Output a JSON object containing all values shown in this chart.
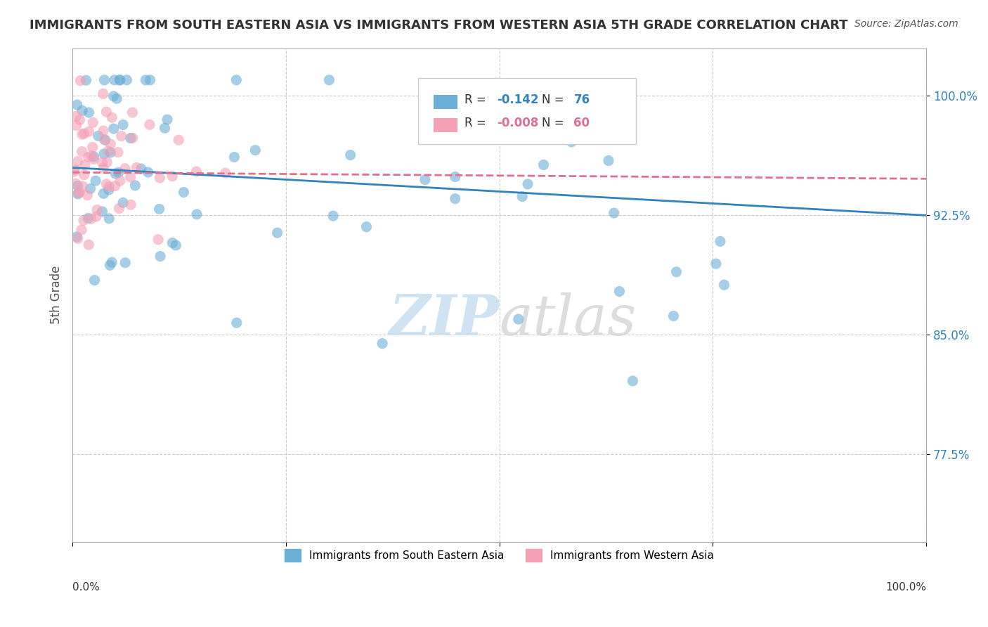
{
  "title": "IMMIGRANTS FROM SOUTH EASTERN ASIA VS IMMIGRANTS FROM WESTERN ASIA 5TH GRADE CORRELATION CHART",
  "source": "Source: ZipAtlas.com",
  "ylabel": "5th Grade",
  "y_tick_labels": [
    "77.5%",
    "85.0%",
    "92.5%",
    "100.0%"
  ],
  "y_tick_values": [
    0.775,
    0.85,
    0.925,
    1.0
  ],
  "xlim": [
    0.0,
    1.0
  ],
  "ylim": [
    0.72,
    1.03
  ],
  "legend_blue_label": "Immigrants from South Eastern Asia",
  "legend_pink_label": "Immigrants from Western Asia",
  "R_blue": -0.142,
  "N_blue": 76,
  "R_pink": -0.008,
  "N_pink": 60,
  "blue_color": "#6baed6",
  "pink_color": "#f4a0b5",
  "blue_line_color": "#3182bd",
  "pink_line_color": "#e07090",
  "watermark_zip": "ZIP",
  "watermark_atlas": "atlas",
  "background_color": "#ffffff",
  "grid_color": "#cccccc"
}
